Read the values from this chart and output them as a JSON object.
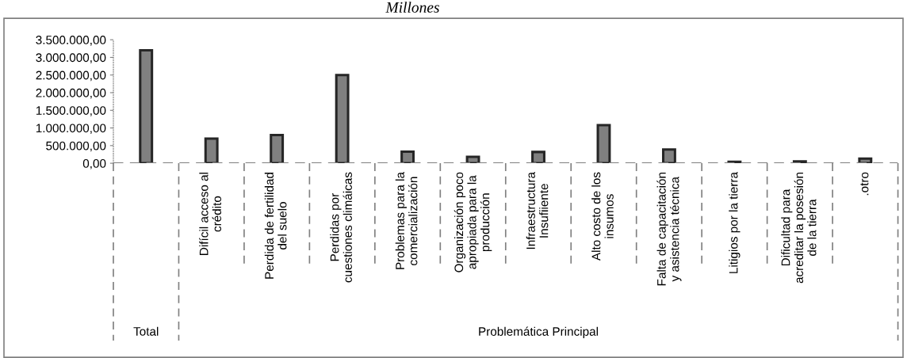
{
  "chart_data": {
    "type": "bar",
    "title": "Millones",
    "categories": [
      null,
      "Difícil acceso al\ncrédito",
      "Perdida de fertilidad\ndel suelo",
      "Perdidas por\ncuestiones climáicas",
      "Problemas para la\ncomercialización",
      "Organización poco\napropiada para la\nproducción",
      "Infraestructura\nInsufiiente",
      "Alto costo de los\ninsumos",
      "Falta de capacitación\ny asistencia técnica",
      "Litigios por la tierra",
      "Dificultad para\nacreditar la posesión\nde la tierra",
      ".otro"
    ],
    "values": [
      3200000,
      700000,
      800000,
      2500000,
      330000,
      180000,
      320000,
      1080000,
      390000,
      40000,
      50000,
      130000
    ],
    "color": "#808080",
    "ylim": [
      0,
      3500000
    ],
    "yticks": [
      {
        "value": 0,
        "label": "0,00"
      },
      {
        "value": 500000,
        "label": "500.000,00"
      },
      {
        "value": 1000000,
        "label": "1.000.000,00"
      },
      {
        "value": 1500000,
        "label": "1.500.000,00"
      },
      {
        "value": 2000000,
        "label": "2.000.000,00"
      },
      {
        "value": 2500000,
        "label": "2.500.000,00"
      },
      {
        "value": 3000000,
        "label": "3.000.000,00"
      },
      {
        "value": 3500000,
        "label": "3.500.000,00"
      }
    ],
    "annotations": [
      "Total",
      "Problemática Principal"
    ],
    "grid": false,
    "legend": false
  }
}
